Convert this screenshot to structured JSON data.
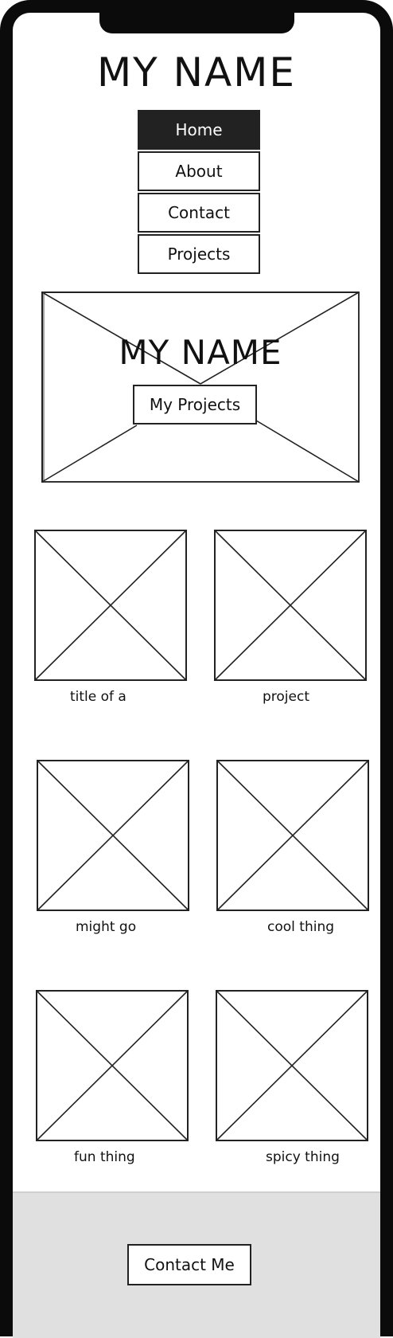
{
  "header": {
    "title": "MY NAME"
  },
  "nav": {
    "items": [
      {
        "label": "Home",
        "active": true
      },
      {
        "label": "About",
        "active": false
      },
      {
        "label": "Contact",
        "active": false
      },
      {
        "label": "Projects",
        "active": false
      }
    ]
  },
  "hero": {
    "title": "MY NAME",
    "button_label": "My Projects"
  },
  "projects": [
    {
      "label": "title of a"
    },
    {
      "label": "project"
    },
    {
      "label": "might go"
    },
    {
      "label": "cool thing"
    },
    {
      "label": "fun thing"
    },
    {
      "label": "spicy thing"
    }
  ],
  "footer": {
    "button_label": "Contact Me"
  },
  "colors": {
    "frame": "#0b0b0b",
    "active_nav": "#222222",
    "footer_bg": "#e0e0e0"
  }
}
